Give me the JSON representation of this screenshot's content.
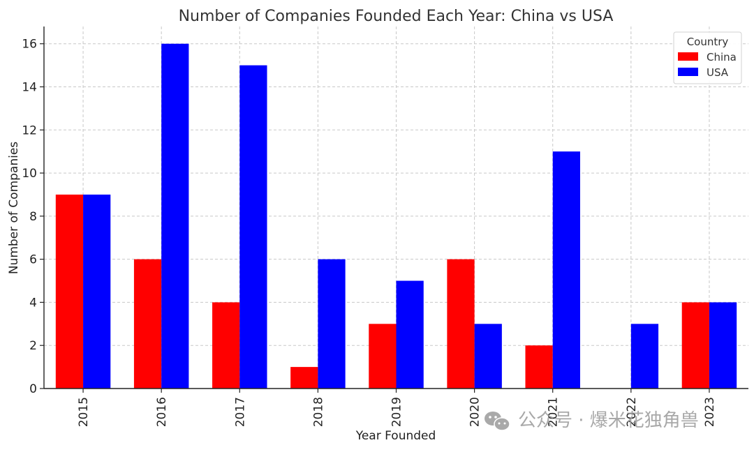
{
  "chart_data": {
    "type": "bar",
    "title": "Number of Companies Founded Each Year: China vs USA",
    "xlabel": "Year Founded",
    "ylabel": "Number of Companies",
    "categories": [
      "2015",
      "2016",
      "2017",
      "2018",
      "2019",
      "2020",
      "2021",
      "2022",
      "2023"
    ],
    "series": [
      {
        "name": "China",
        "color": "#ff0000",
        "values": [
          9,
          6,
          4,
          1,
          3,
          6,
          2,
          0,
          4
        ]
      },
      {
        "name": "USA",
        "color": "#0000ff",
        "values": [
          9,
          16,
          15,
          6,
          5,
          3,
          11,
          3,
          4
        ]
      }
    ],
    "ylim": [
      0,
      16.8
    ],
    "yticks": [
      0,
      2,
      4,
      6,
      8,
      10,
      12,
      14,
      16
    ],
    "grid": true,
    "legend": {
      "title": "Country",
      "placement": "top-right"
    }
  },
  "watermark": {
    "text": "公众号 · 爆米花独角兽",
    "icon": "wechat-icon"
  }
}
